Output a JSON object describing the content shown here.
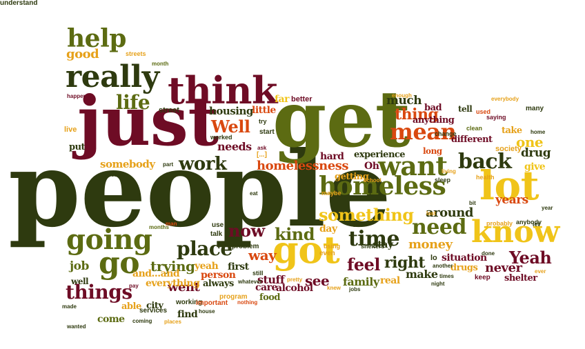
{
  "colors": {
    "dark_green": "#2e3a0f",
    "olive": "#5c6b12",
    "maroon": "#6e0c25",
    "orange": "#d9480f",
    "gold": "#f0c419",
    "amber": "#e6a11a"
  },
  "words": [
    {
      "text": "people",
      "color": "dark_green"
    },
    {
      "text": "get",
      "color": "olive"
    },
    {
      "text": "just",
      "color": "maroon"
    },
    {
      "text": "think",
      "color": "maroon"
    },
    {
      "text": "really",
      "color": "dark_green"
    },
    {
      "text": "help",
      "color": "olive"
    },
    {
      "text": "know",
      "color": "gold"
    },
    {
      "text": "lot",
      "color": "gold"
    },
    {
      "text": "got",
      "color": "gold"
    },
    {
      "text": "go",
      "color": "olive"
    },
    {
      "text": "going",
      "color": "olive"
    },
    {
      "text": "homeless",
      "color": "olive"
    },
    {
      "text": "want",
      "color": "olive"
    },
    {
      "text": "mean",
      "color": "orange"
    },
    {
      "text": "back",
      "color": "dark_green"
    },
    {
      "text": "life",
      "color": "olive"
    },
    {
      "text": "things",
      "color": "maroon"
    },
    {
      "text": "time",
      "color": "dark_green"
    },
    {
      "text": "need",
      "color": "olive"
    },
    {
      "text": "place",
      "color": "dark_green"
    },
    {
      "text": "work",
      "color": "dark_green"
    },
    {
      "text": "Well",
      "color": "orange"
    },
    {
      "text": "now",
      "color": "maroon"
    },
    {
      "text": "good",
      "color": "amber"
    },
    {
      "text": "something",
      "color": "gold"
    },
    {
      "text": "thing",
      "color": "orange"
    },
    {
      "text": "feel",
      "color": "maroon"
    },
    {
      "text": "see",
      "color": "maroon"
    },
    {
      "text": "kind",
      "color": "olive"
    },
    {
      "text": "right",
      "color": "dark_green"
    },
    {
      "text": "Yeah",
      "color": "maroon"
    },
    {
      "text": "money",
      "color": "amber"
    },
    {
      "text": "way",
      "color": "orange"
    },
    {
      "text": "homelessness",
      "color": "orange"
    },
    {
      "text": "trying",
      "color": "olive"
    },
    {
      "text": "around",
      "color": "dark_green"
    },
    {
      "text": "much",
      "color": "dark_green"
    },
    {
      "text": "one",
      "color": "gold"
    },
    {
      "text": "years",
      "color": "orange"
    },
    {
      "text": "never",
      "color": "maroon"
    },
    {
      "text": "drug",
      "color": "dark_green"
    },
    {
      "text": "job",
      "color": "olive"
    },
    {
      "text": "family",
      "color": "olive"
    },
    {
      "text": "went",
      "color": "maroon"
    },
    {
      "text": "make",
      "color": "dark_green"
    },
    {
      "text": "situation",
      "color": "maroon"
    },
    {
      "text": "somebody",
      "color": "amber"
    },
    {
      "text": "experience",
      "color": "dark_green"
    },
    {
      "text": "anything",
      "color": "maroon"
    },
    {
      "text": "different",
      "color": "maroon"
    },
    {
      "text": "everything",
      "color": "amber"
    },
    {
      "text": "stuff",
      "color": "maroon"
    },
    {
      "text": "housing",
      "color": "dark_green"
    },
    {
      "text": "needs",
      "color": "maroon"
    },
    {
      "text": "little",
      "color": "orange"
    },
    {
      "text": "far",
      "color": "gold"
    },
    {
      "text": "yeah",
      "color": "amber"
    },
    {
      "text": "person",
      "color": "orange"
    },
    {
      "text": "first",
      "color": "dark_green"
    },
    {
      "text": "hard",
      "color": "maroon"
    },
    {
      "text": "getting",
      "color": "amber"
    },
    {
      "text": "and...and",
      "color": "amber"
    },
    {
      "text": "stay",
      "color": "dark_green"
    },
    {
      "text": "day",
      "color": "amber"
    },
    {
      "text": "drugs",
      "color": "amber"
    },
    {
      "text": "take",
      "color": "amber"
    },
    {
      "text": "give",
      "color": "gold"
    },
    {
      "text": "society",
      "color": "amber"
    },
    {
      "text": "long",
      "color": "orange"
    },
    {
      "text": "real",
      "color": "amber"
    },
    {
      "text": "care",
      "color": "maroon"
    },
    {
      "text": "food",
      "color": "olive"
    },
    {
      "text": "city",
      "color": "dark_green"
    },
    {
      "text": "come",
      "color": "olive"
    },
    {
      "text": "find",
      "color": "dark_green"
    },
    {
      "text": "alcohol",
      "color": "maroon"
    },
    {
      "text": "always",
      "color": "dark_green"
    },
    {
      "text": "able",
      "color": "amber"
    },
    {
      "text": "well",
      "color": "dark_green"
    },
    {
      "text": "shelter",
      "color": "maroon"
    },
    {
      "text": "Oh",
      "color": "maroon"
    },
    {
      "text": "bad",
      "color": "maroon"
    },
    {
      "text": "tell",
      "color": "dark_green"
    },
    {
      "text": "put",
      "color": "dark_green"
    },
    {
      "text": "live",
      "color": "amber"
    },
    {
      "text": "better",
      "color": "maroon"
    },
    {
      "text": "street",
      "color": "dark_green"
    },
    {
      "text": "even",
      "color": "amber"
    },
    {
      "text": "still",
      "color": "dark_green"
    },
    {
      "text": "program",
      "color": "amber"
    },
    {
      "text": "working",
      "color": "dark_green"
    },
    {
      "text": "services",
      "color": "dark_green"
    },
    {
      "text": "important",
      "color": "orange"
    },
    {
      "text": "problem",
      "color": "dark_green"
    },
    {
      "text": "talk",
      "color": "dark_green"
    },
    {
      "text": "use",
      "color": "dark_green"
    },
    {
      "text": "start",
      "color": "dark_green"
    },
    {
      "text": "worked",
      "color": "dark_green"
    },
    {
      "text": "try",
      "color": "dark_green"
    },
    {
      "text": "[...]",
      "color": "amber"
    },
    {
      "text": "ask",
      "color": "maroon"
    },
    {
      "text": "change",
      "color": "dark_green"
    },
    {
      "text": "clean",
      "color": "olive"
    },
    {
      "text": "lo",
      "color": "dark_green"
    },
    {
      "text": "many",
      "color": "dark_green"
    },
    {
      "text": "saying",
      "color": "maroon"
    },
    {
      "text": "used",
      "color": "orange"
    },
    {
      "text": "everybody",
      "color": "amber"
    },
    {
      "text": "streets",
      "color": "amber"
    },
    {
      "text": "month",
      "color": "olive"
    },
    {
      "text": "happened",
      "color": "maroon"
    },
    {
      "text": "enough",
      "color": "amber"
    },
    {
      "text": "came",
      "color": "dark_green"
    },
    {
      "text": "part",
      "color": "dark_green"
    },
    {
      "text": "eat",
      "color": "dark_green"
    },
    {
      "text": "maybe",
      "color": "amber"
    },
    {
      "text": "school",
      "color": "amber"
    },
    {
      "text": "sleep",
      "color": "dark_green"
    },
    {
      "text": "living",
      "color": "amber"
    },
    {
      "text": "health",
      "color": "amber"
    },
    {
      "text": "home",
      "color": "dark_green"
    },
    {
      "text": "year",
      "color": "dark_green"
    },
    {
      "text": "bit",
      "color": "dark_green"
    },
    {
      "text": "last",
      "color": "amber"
    },
    {
      "text": "anybody",
      "color": "dark_green"
    },
    {
      "text": "probably",
      "color": "amber"
    },
    {
      "text": "let",
      "color": "dark_green"
    },
    {
      "text": "done",
      "color": "dark_green"
    },
    {
      "text": "another",
      "color": "dark_green"
    },
    {
      "text": "times",
      "color": "dark_green"
    },
    {
      "text": "keep",
      "color": "maroon"
    },
    {
      "text": "ever",
      "color": "amber"
    },
    {
      "text": "night",
      "color": "dark_green"
    },
    {
      "text": "using",
      "color": "amber"
    },
    {
      "text": "shelters",
      "color": "dark_green"
    },
    {
      "text": "else",
      "color": "dark_green"
    },
    {
      "text": "whatever",
      "color": "dark_green"
    },
    {
      "text": "pretty",
      "color": "amber"
    },
    {
      "text": "knew",
      "color": "amber"
    },
    {
      "text": "jobs",
      "color": "dark_green"
    },
    {
      "text": "months",
      "color": "olive"
    },
    {
      "text": "man",
      "color": "orange"
    },
    {
      "text": "pay",
      "color": "maroon"
    },
    {
      "text": "made",
      "color": "dark_green"
    },
    {
      "text": "nothing",
      "color": "orange"
    },
    {
      "text": "house",
      "color": "dark_green"
    },
    {
      "text": "coming",
      "color": "dark_green"
    },
    {
      "text": "places",
      "color": "amber"
    },
    {
      "text": "wanted",
      "color": "dark_green"
    },
    {
      "text": "understand",
      "color": "dark_green"
    }
  ]
}
